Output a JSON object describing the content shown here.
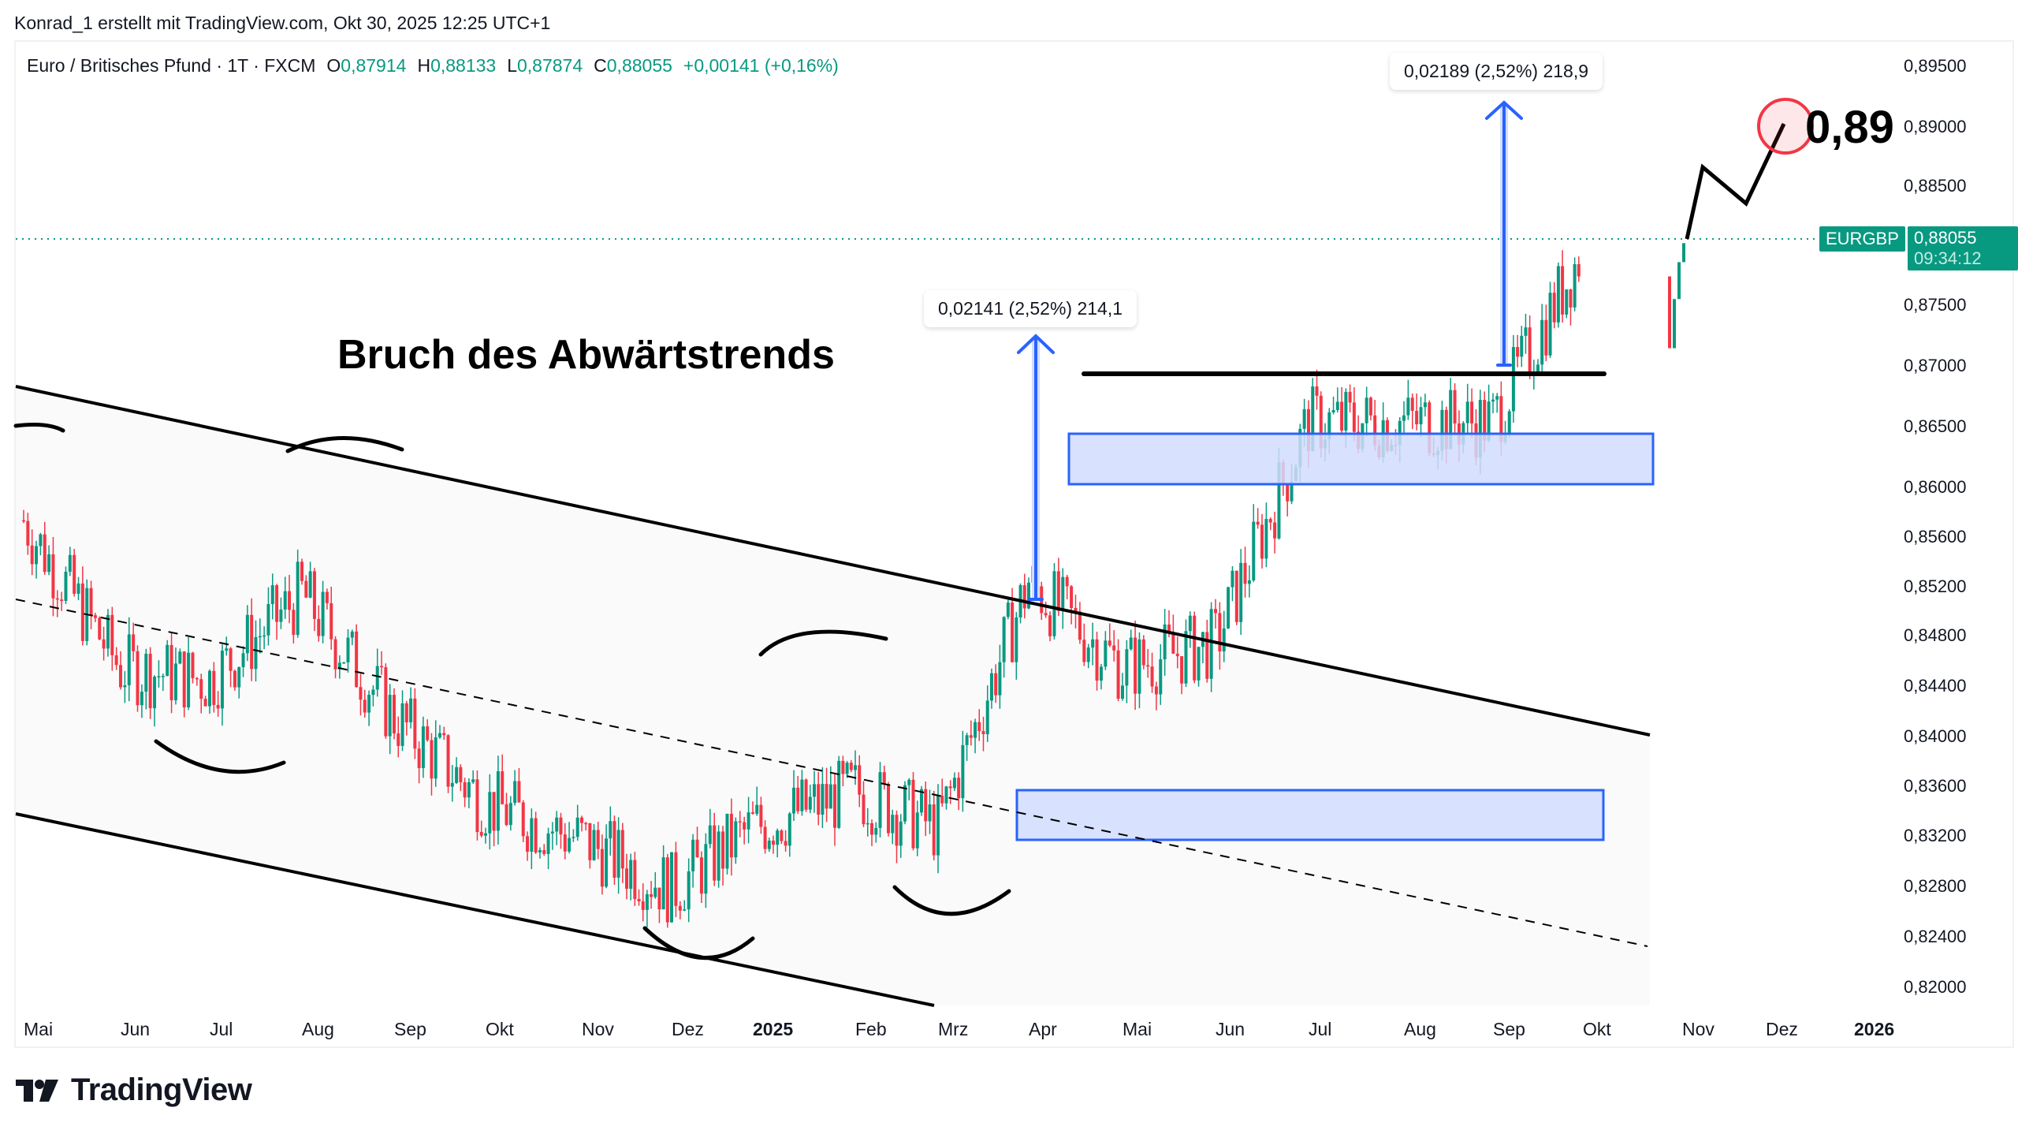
{
  "header": {
    "caption": "Konrad_1 erstellt mit TradingView.com, Okt 30, 2025 12:25 UTC+1"
  },
  "legend": {
    "symbol_desc": "Euro / Britisches Pfund · 1T · FXCM",
    "open_label": "O",
    "open": "0,87914",
    "high_label": "H",
    "high": "0,88133",
    "low_label": "L",
    "low": "0,87874",
    "close_label": "C",
    "close": "0,88055",
    "change": "+0,00141 (+0,16%)"
  },
  "price_tag": {
    "symbol": "EURGBP",
    "price": "0,88055",
    "countdown": "09:34:12",
    "color": "#089981"
  },
  "annotations": {
    "title": "Bruch des Abwärtstrends",
    "target": "0,89",
    "measure_1": "0,02141 (2,52%) 214,1",
    "measure_2": "0,02189 (2,52%) 218,9"
  },
  "colors": {
    "up": "#089981",
    "down": "#f23645",
    "zone_fill": "#d1dcfd",
    "zone_border": "#2962ff",
    "target_circle": "#f23645"
  },
  "logo": {
    "text": "TradingView"
  },
  "chart_data": {
    "type": "candlestick",
    "title": "Euro / Britisches Pfund · 1T · FXCM",
    "symbol": "EURGBP",
    "timeframe": "1T",
    "ohlc_last": {
      "open": 0.87914,
      "high": 0.88133,
      "low": 0.87874,
      "close": 0.88055,
      "change": 0.00141,
      "change_pct": 0.16
    },
    "y_axis": {
      "ticks": [
        "0,89500",
        "0,89000",
        "0,88500",
        "0,87500",
        "0,87000",
        "0,86500",
        "0,86000",
        "0,85600",
        "0,85200",
        "0,84800",
        "0,84400",
        "0,84000",
        "0,83600",
        "0,83200",
        "0,82800",
        "0,82400",
        "0,82000"
      ],
      "range": [
        0.819,
        0.897
      ]
    },
    "x_axis": {
      "ticks": [
        "Mai",
        "Jun",
        "Jul",
        "Aug",
        "Sep",
        "Okt",
        "Nov",
        "Dez",
        "2025",
        "Feb",
        "Mrz",
        "Apr",
        "Mai",
        "Jun",
        "Jul",
        "Aug",
        "Sep",
        "Okt",
        "Nov",
        "Dez",
        "2026"
      ]
    },
    "approx_monthly_close": {
      "x": [
        "Mai 2024",
        "Jun",
        "Jul",
        "Aug",
        "Sep",
        "Okt",
        "Nov",
        "Dez",
        "Jan 2025",
        "Feb",
        "Mrz",
        "Apr",
        "Mai",
        "Jun",
        "Jul",
        "Aug",
        "Sep",
        "Okt 2025"
      ],
      "values": [
        0.858,
        0.846,
        0.845,
        0.852,
        0.842,
        0.835,
        0.832,
        0.828,
        0.833,
        0.836,
        0.833,
        0.853,
        0.846,
        0.848,
        0.866,
        0.866,
        0.866,
        0.88
      ]
    },
    "drawings": {
      "descending_channel_upper": {
        "start": [
          "Mai 2024",
          0.872
        ],
        "end": [
          "Okt 2025",
          0.8405
        ]
      },
      "descending_channel_lower": {
        "start": [
          "Mai 2024",
          0.842
        ],
        "end": [
          "Mrz 2025",
          0.82
        ]
      },
      "channel_midline_dashed": {
        "start": [
          "Mai 2024",
          0.851
        ],
        "end": [
          "Okt 2025",
          0.8235
        ]
      },
      "resistance_line": {
        "level": 0.8695,
        "from": "Apr 2025",
        "to": "Okt 2025"
      },
      "demand_zone_upper": {
        "top": 0.8645,
        "bottom": 0.8602,
        "from": "Apr 2025",
        "to": "Okt 2025"
      },
      "demand_zone_lower": {
        "top": 0.8355,
        "bottom": 0.8318,
        "from": "Mrz 2025",
        "to": "Sep 2025"
      },
      "measure_1": {
        "value": 0.02141,
        "pct": 2.52,
        "ticks": 214.1,
        "from": 0.851,
        "to": 0.8725
      },
      "measure_2": {
        "value": 0.02189,
        "pct": 2.52,
        "ticks": 218.9,
        "from": 0.87,
        "to": 0.892
      },
      "projection_path": [
        [
          "Okt 2025",
          0.8806
        ],
        [
          "Nov 2025",
          0.8865
        ],
        [
          "Nov 2025",
          0.884
        ],
        [
          "Dez 2025",
          0.89
        ]
      ],
      "target": 0.89
    },
    "last_price_line": 0.88055,
    "grid": false
  }
}
